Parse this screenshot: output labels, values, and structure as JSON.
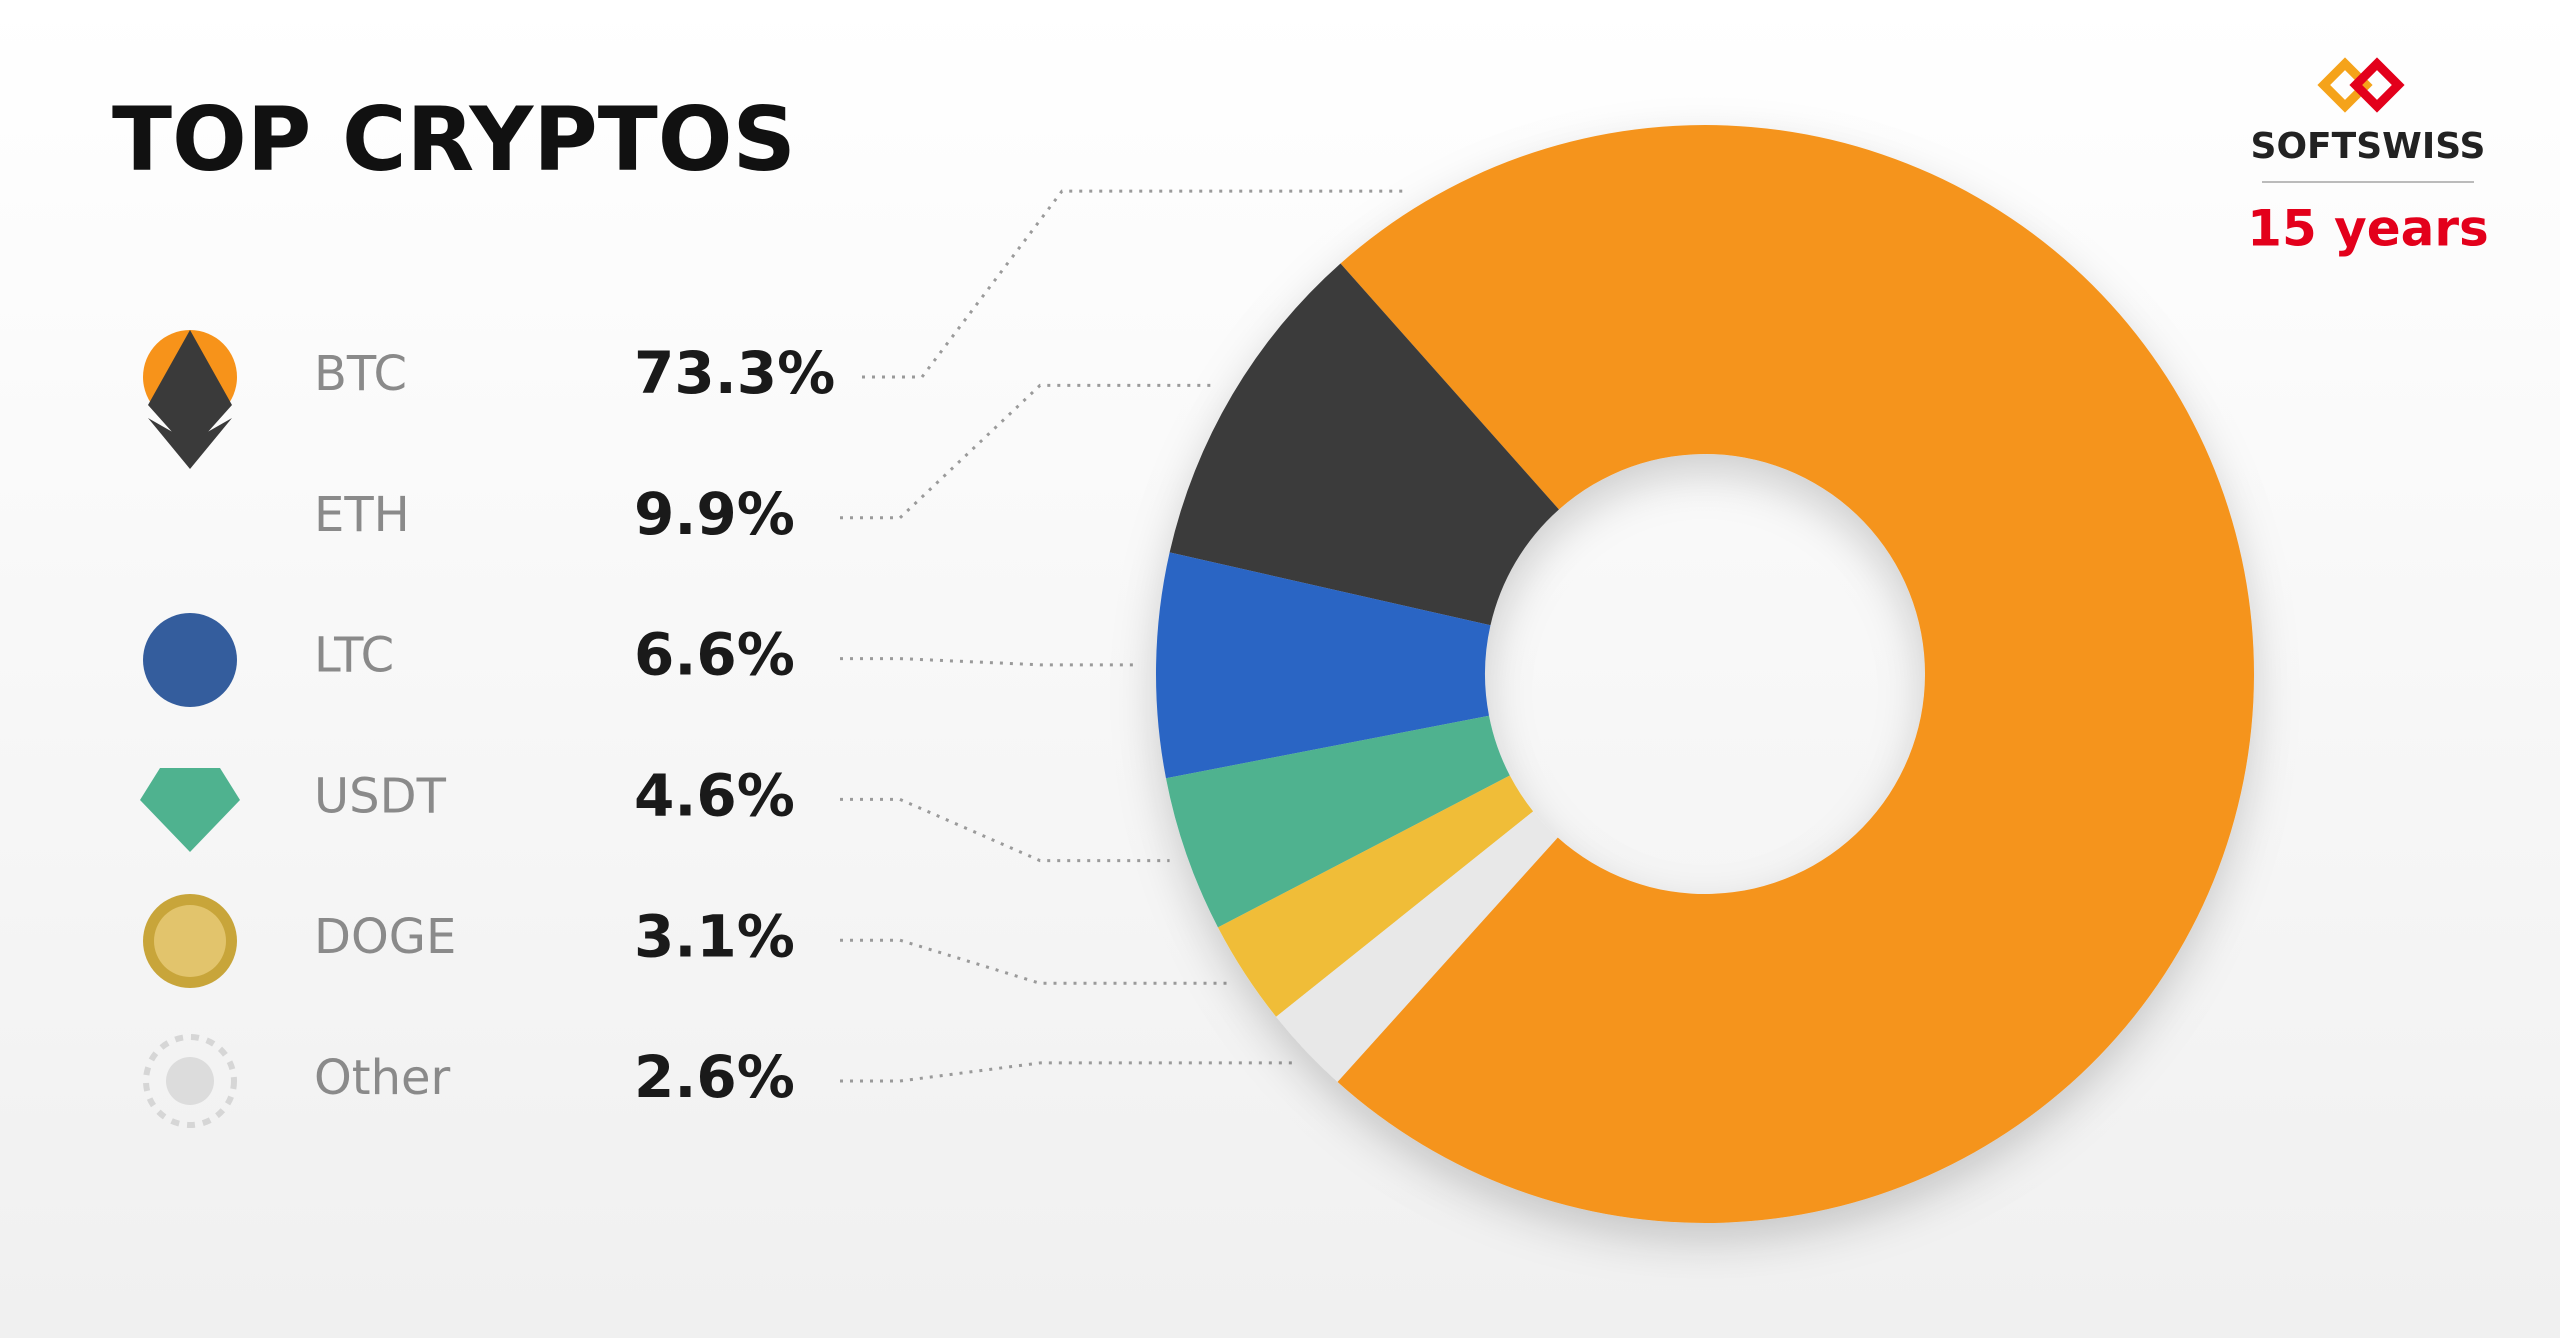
{
  "chart_data": {
    "type": "pie",
    "donut": true,
    "title": "TOP CRYPTOS",
    "categories": [
      "BTC",
      "ETH",
      "LTC",
      "USDT",
      "DOGE",
      "Other"
    ],
    "values": [
      73.3,
      9.9,
      6.6,
      4.6,
      3.1,
      2.6
    ],
    "value_labels": [
      "73.3%",
      "9.9%",
      "6.6%",
      "4.6%",
      "3.1%",
      "2.6%"
    ],
    "colors": [
      "#f5941e",
      "#3a3a3a",
      "#2a65c4",
      "#4fb28f",
      "#f0bd38",
      "#e8e8e8"
    ]
  },
  "logo": {
    "name": "SOFTSWISS",
    "tagline": "15 years"
  }
}
